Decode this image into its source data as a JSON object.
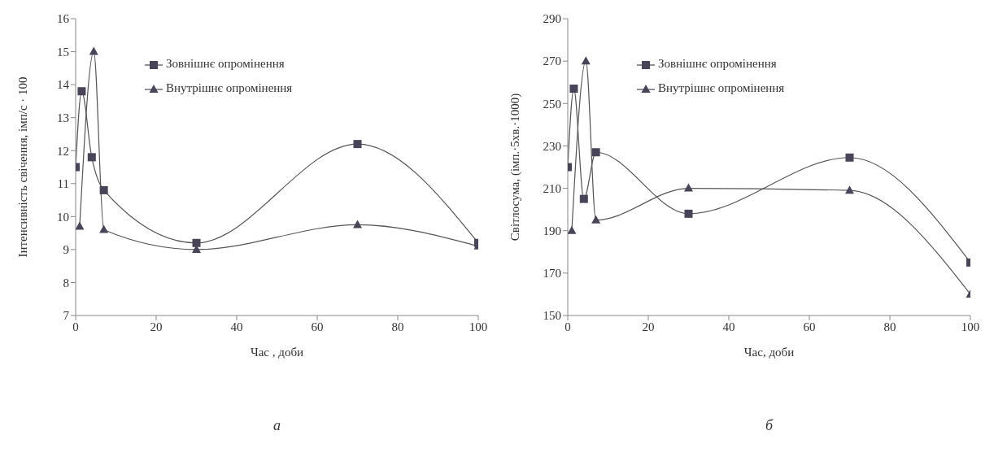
{
  "chart_data": [
    {
      "type": "line",
      "xlabel": "Час , доби",
      "ylabel": "Інтенсивність свічення, імп/с · 100",
      "annotations": [
        "а"
      ],
      "xlim": [
        0,
        100
      ],
      "xticks": [
        0,
        20,
        40,
        60,
        80,
        100
      ],
      "ylim": [
        7,
        16
      ],
      "yticks": [
        7,
        8,
        9,
        10,
        11,
        12,
        13,
        14,
        15,
        16
      ],
      "grid": false,
      "legend": "top",
      "series": [
        {
          "name": "Зовнішнє опромінення",
          "color": "#4a4458",
          "marker": "square",
          "x": [
            0,
            1.5,
            4,
            7,
            30,
            70,
            100
          ],
          "values": [
            11.5,
            13.8,
            11.8,
            10.8,
            9.2,
            12.2,
            9.2
          ]
        },
        {
          "name": "Внутрішнє опромінення",
          "color": "#4a4458",
          "marker": "triangle",
          "x": [
            1,
            4.5,
            7,
            30,
            70,
            100
          ],
          "values": [
            9.7,
            15,
            9.6,
            9.0,
            9.75,
            9.1
          ]
        }
      ]
    },
    {
      "type": "line",
      "xlabel": "Час, доби",
      "ylabel": "Світлосума, (імп.·5хв.·1000)",
      "annotations": [
        "б"
      ],
      "xlim": [
        0,
        100
      ],
      "xticks": [
        0,
        20,
        40,
        60,
        80,
        100
      ],
      "ylim": [
        150,
        290
      ],
      "yticks": [
        150,
        170,
        190,
        210,
        230,
        250,
        270,
        290
      ],
      "grid": false,
      "legend": "top",
      "series": [
        {
          "name": "Зовнішнє опромінення",
          "color": "#4a4458",
          "marker": "square",
          "x": [
            0,
            1.5,
            4,
            7,
            30,
            70,
            100
          ],
          "values": [
            220,
            257,
            205,
            227,
            198,
            224.5,
            175
          ]
        },
        {
          "name": "Внутрішнє опромінення",
          "color": "#4a4458",
          "marker": "triangle",
          "x": [
            1,
            4.5,
            7,
            30,
            70,
            100
          ],
          "values": [
            190,
            270,
            195,
            210,
            209,
            160
          ]
        }
      ]
    }
  ]
}
